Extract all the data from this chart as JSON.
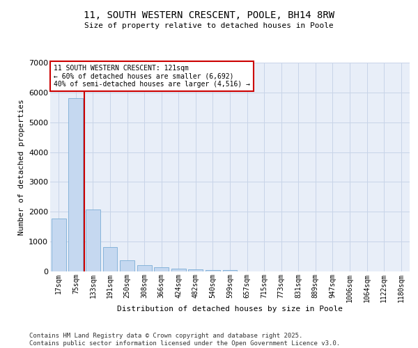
{
  "title_line1": "11, SOUTH WESTERN CRESCENT, POOLE, BH14 8RW",
  "title_line2": "Size of property relative to detached houses in Poole",
  "xlabel": "Distribution of detached houses by size in Poole",
  "ylabel": "Number of detached properties",
  "categories": [
    "17sqm",
    "75sqm",
    "133sqm",
    "191sqm",
    "250sqm",
    "308sqm",
    "366sqm",
    "424sqm",
    "482sqm",
    "540sqm",
    "599sqm",
    "657sqm",
    "715sqm",
    "773sqm",
    "831sqm",
    "889sqm",
    "947sqm",
    "1006sqm",
    "1064sqm",
    "1122sqm",
    "1180sqm"
  ],
  "values": [
    1780,
    5820,
    2080,
    820,
    370,
    215,
    130,
    90,
    70,
    55,
    45,
    0,
    0,
    0,
    0,
    0,
    0,
    0,
    0,
    0,
    0
  ],
  "bar_color": "#c5d8f0",
  "bar_edge_color": "#7aadd6",
  "vline_x": 1.5,
  "annotation_line1": "11 SOUTH WESTERN CRESCENT: 121sqm",
  "annotation_line2": "← 60% of detached houses are smaller (6,692)",
  "annotation_line3": "40% of semi-detached houses are larger (4,516) →",
  "annotation_box_color": "#ffffff",
  "annotation_box_edge_color": "#cc0000",
  "vline_color": "#cc0000",
  "grid_color": "#c8d4e8",
  "background_color": "#e8eef8",
  "fig_background": "#ffffff",
  "ylim": [
    0,
    7000
  ],
  "yticks": [
    0,
    1000,
    2000,
    3000,
    4000,
    5000,
    6000,
    7000
  ],
  "footer_line1": "Contains HM Land Registry data © Crown copyright and database right 2025.",
  "footer_line2": "Contains public sector information licensed under the Open Government Licence v3.0."
}
